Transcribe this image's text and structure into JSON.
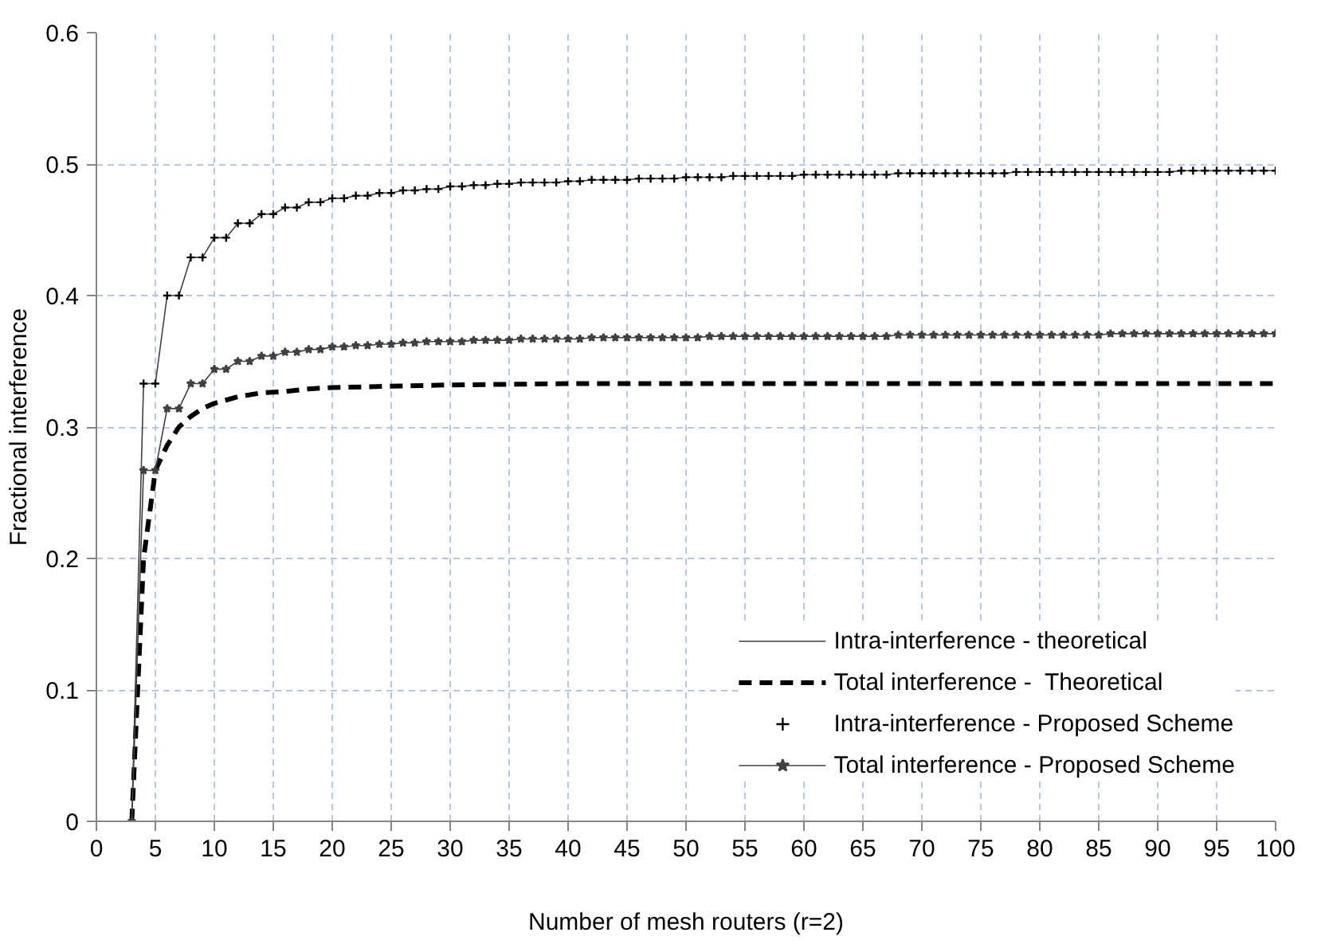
{
  "chart_data": {
    "type": "line",
    "xlabel": "Number of mesh routers (r=2)",
    "ylabel": "Fractional interference",
    "x": [
      3,
      4,
      5,
      6,
      7,
      8,
      9,
      10,
      11,
      12,
      13,
      14,
      15,
      16,
      17,
      18,
      19,
      20,
      21,
      22,
      23,
      24,
      25,
      26,
      27,
      28,
      29,
      30,
      31,
      32,
      33,
      34,
      35,
      36,
      37,
      38,
      39,
      40,
      41,
      42,
      43,
      44,
      45,
      46,
      47,
      48,
      49,
      50,
      51,
      52,
      53,
      54,
      55,
      56,
      57,
      58,
      59,
      60,
      61,
      62,
      63,
      64,
      65,
      66,
      67,
      68,
      69,
      70,
      71,
      72,
      73,
      74,
      75,
      76,
      77,
      78,
      79,
      80,
      81,
      82,
      83,
      84,
      85,
      86,
      87,
      88,
      89,
      90,
      91,
      92,
      93,
      94,
      95,
      96,
      97,
      98,
      99,
      100
    ],
    "series": [
      {
        "name": "Intra-interference - theoretical",
        "color": "#404040",
        "marker": "none",
        "line_style": "solid",
        "values": [
          0,
          0.333,
          0.333,
          0.4,
          0.4,
          0.429,
          0.429,
          0.444,
          0.444,
          0.455,
          0.455,
          0.462,
          0.462,
          0.467,
          0.467,
          0.471,
          0.471,
          0.474,
          0.474,
          0.476,
          0.476,
          0.478,
          0.478,
          0.48,
          0.48,
          0.481,
          0.481,
          0.483,
          0.483,
          0.484,
          0.484,
          0.485,
          0.485,
          0.486,
          0.486,
          0.486,
          0.486,
          0.487,
          0.487,
          0.488,
          0.488,
          0.488,
          0.488,
          0.489,
          0.489,
          0.489,
          0.489,
          0.49,
          0.49,
          0.49,
          0.49,
          0.491,
          0.491,
          0.491,
          0.491,
          0.491,
          0.491,
          0.492,
          0.492,
          0.492,
          0.492,
          0.492,
          0.492,
          0.492,
          0.492,
          0.493,
          0.493,
          0.493,
          0.493,
          0.493,
          0.493,
          0.493,
          0.493,
          0.493,
          0.493,
          0.494,
          0.494,
          0.494,
          0.494,
          0.494,
          0.494,
          0.494,
          0.494,
          0.494,
          0.494,
          0.494,
          0.494,
          0.494,
          0.494,
          0.495,
          0.495,
          0.495,
          0.495,
          0.495,
          0.495,
          0.495,
          0.495,
          0.495
        ]
      },
      {
        "name": "Total interference -  Theoretical",
        "color": "#000000",
        "marker": "none",
        "line_style": "dashed",
        "x": [
          3,
          4,
          5,
          6,
          7,
          8,
          9,
          10,
          12,
          14,
          16,
          18,
          20,
          25,
          30,
          40,
          50,
          60,
          70,
          80,
          90,
          100
        ],
        "values": [
          0,
          0.2,
          0.267,
          0.286,
          0.3,
          0.308,
          0.314,
          0.318,
          0.323,
          0.326,
          0.327,
          0.329,
          0.33,
          0.331,
          0.332,
          0.333,
          0.333,
          0.333,
          0.333,
          0.333,
          0.333,
          0.333
        ]
      },
      {
        "name": "Intra-interference - Proposed Scheme",
        "type": "scatter",
        "color": "#000000",
        "marker": "cross",
        "values": [
          0,
          0.333,
          0.333,
          0.4,
          0.4,
          0.429,
          0.429,
          0.444,
          0.444,
          0.455,
          0.455,
          0.462,
          0.462,
          0.467,
          0.467,
          0.471,
          0.471,
          0.474,
          0.474,
          0.476,
          0.476,
          0.478,
          0.478,
          0.48,
          0.48,
          0.481,
          0.481,
          0.483,
          0.483,
          0.484,
          0.484,
          0.485,
          0.485,
          0.486,
          0.486,
          0.486,
          0.486,
          0.487,
          0.487,
          0.488,
          0.488,
          0.488,
          0.488,
          0.489,
          0.489,
          0.489,
          0.489,
          0.49,
          0.49,
          0.49,
          0.49,
          0.491,
          0.491,
          0.491,
          0.491,
          0.491,
          0.491,
          0.492,
          0.492,
          0.492,
          0.492,
          0.492,
          0.492,
          0.492,
          0.492,
          0.493,
          0.493,
          0.493,
          0.493,
          0.493,
          0.493,
          0.493,
          0.493,
          0.493,
          0.493,
          0.494,
          0.494,
          0.494,
          0.494,
          0.494,
          0.494,
          0.494,
          0.494,
          0.494,
          0.494,
          0.494,
          0.494,
          0.494,
          0.494,
          0.495,
          0.495,
          0.495,
          0.495,
          0.495,
          0.495,
          0.495,
          0.495,
          0.495
        ]
      },
      {
        "name": "Total interference - Proposed Scheme",
        "color": "#404040",
        "marker": "star",
        "line_style": "solid",
        "values": [
          0,
          0.267,
          0.267,
          0.314,
          0.314,
          0.333,
          0.333,
          0.344,
          0.344,
          0.35,
          0.35,
          0.354,
          0.354,
          0.357,
          0.357,
          0.359,
          0.359,
          0.361,
          0.361,
          0.362,
          0.362,
          0.363,
          0.363,
          0.364,
          0.364,
          0.365,
          0.365,
          0.365,
          0.365,
          0.366,
          0.366,
          0.366,
          0.366,
          0.367,
          0.367,
          0.367,
          0.367,
          0.367,
          0.367,
          0.368,
          0.368,
          0.368,
          0.368,
          0.368,
          0.368,
          0.368,
          0.368,
          0.368,
          0.368,
          0.369,
          0.369,
          0.369,
          0.369,
          0.369,
          0.369,
          0.369,
          0.369,
          0.369,
          0.369,
          0.369,
          0.369,
          0.369,
          0.369,
          0.369,
          0.369,
          0.37,
          0.37,
          0.37,
          0.37,
          0.37,
          0.37,
          0.37,
          0.37,
          0.37,
          0.37,
          0.37,
          0.37,
          0.37,
          0.37,
          0.37,
          0.37,
          0.37,
          0.37,
          0.371,
          0.371,
          0.371,
          0.371,
          0.371,
          0.371,
          0.371,
          0.371,
          0.371,
          0.371,
          0.371,
          0.371,
          0.371,
          0.371,
          0.371
        ]
      }
    ],
    "xlim": [
      0,
      100
    ],
    "xticks": [
      0,
      5,
      10,
      15,
      20,
      25,
      30,
      35,
      40,
      45,
      50,
      55,
      60,
      65,
      70,
      75,
      80,
      85,
      90,
      95,
      100
    ],
    "ylim": [
      0,
      0.6
    ],
    "yticks": [
      0,
      0.1,
      0.2,
      0.3,
      0.4,
      0.5,
      0.6
    ],
    "grid": true,
    "legend": "bottom right"
  }
}
